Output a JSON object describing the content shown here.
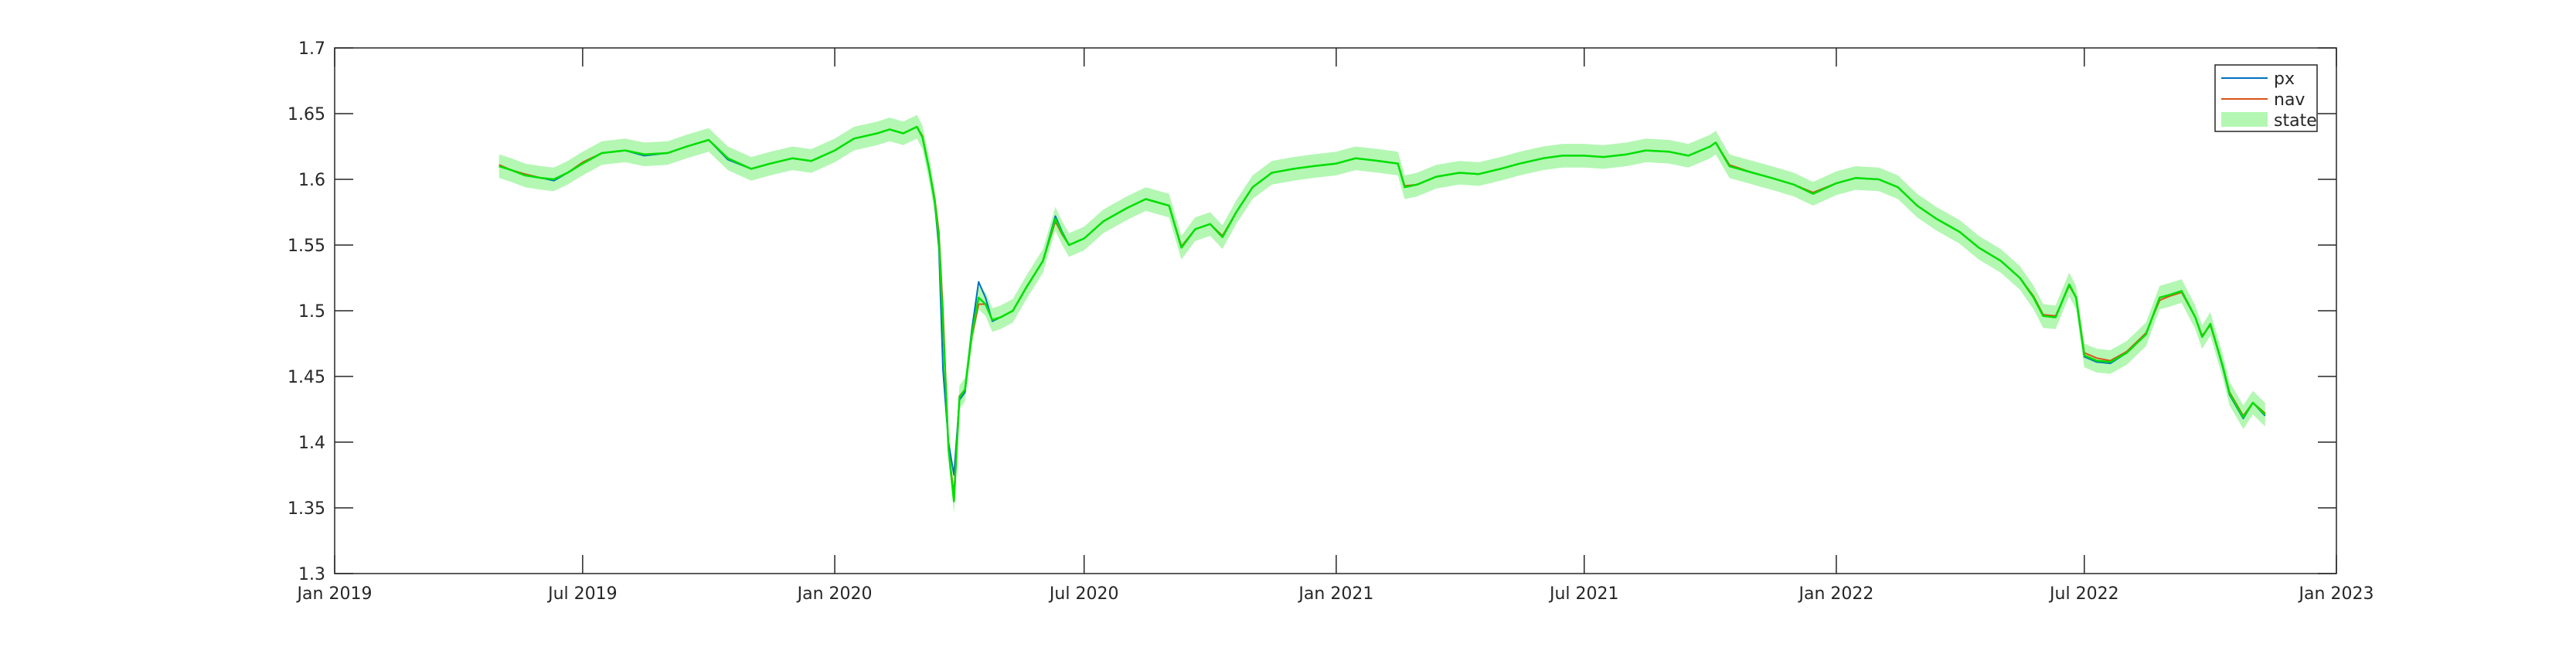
{
  "chart_data": {
    "type": "line",
    "title": "",
    "xlabel": "",
    "ylabel": "",
    "xlim": [
      "2019-01-01",
      "2023-01-01"
    ],
    "ylim": [
      1.3,
      1.7
    ],
    "grid": false,
    "legend_position": "top-right",
    "xticks": [
      "Jan 2019",
      "Jul 2019",
      "Jan 2020",
      "Jul 2020",
      "Jan 2021",
      "Jul 2021",
      "Jan 2022",
      "Jul 2022",
      "Jan 2023"
    ],
    "yticks": [
      "1.3",
      "1.35",
      "1.4",
      "1.45",
      "1.5",
      "1.55",
      "1.6",
      "1.65",
      "1.7"
    ],
    "x": [
      "2019-05-01",
      "2019-05-10",
      "2019-05-20",
      "2019-06-01",
      "2019-06-10",
      "2019-06-20",
      "2019-07-01",
      "2019-07-15",
      "2019-08-01",
      "2019-08-15",
      "2019-09-01",
      "2019-09-15",
      "2019-10-01",
      "2019-10-15",
      "2019-11-01",
      "2019-11-15",
      "2019-12-01",
      "2019-12-15",
      "2020-01-01",
      "2020-01-15",
      "2020-02-01",
      "2020-02-10",
      "2020-02-20",
      "2020-03-01",
      "2020-03-05",
      "2020-03-10",
      "2020-03-14",
      "2020-03-17",
      "2020-03-20",
      "2020-03-24",
      "2020-03-28",
      "2020-04-01",
      "2020-04-05",
      "2020-04-10",
      "2020-04-15",
      "2020-04-20",
      "2020-04-25",
      "2020-05-01",
      "2020-05-10",
      "2020-05-20",
      "2020-06-01",
      "2020-06-10",
      "2020-06-15",
      "2020-06-20",
      "2020-07-01",
      "2020-07-15",
      "2020-08-01",
      "2020-08-15",
      "2020-09-01",
      "2020-09-10",
      "2020-09-20",
      "2020-10-01",
      "2020-10-10",
      "2020-10-20",
      "2020-11-01",
      "2020-11-15",
      "2020-12-01",
      "2020-12-15",
      "2021-01-01",
      "2021-01-15",
      "2021-02-01",
      "2021-02-15",
      "2021-02-20",
      "2021-03-01",
      "2021-03-15",
      "2021-04-01",
      "2021-04-15",
      "2021-05-01",
      "2021-05-15",
      "2021-06-01",
      "2021-06-15",
      "2021-07-01",
      "2021-07-15",
      "2021-08-01",
      "2021-08-15",
      "2021-09-01",
      "2021-09-15",
      "2021-10-01",
      "2021-10-05",
      "2021-10-15",
      "2021-11-01",
      "2021-11-15",
      "2021-12-01",
      "2021-12-15",
      "2022-01-01",
      "2022-01-15",
      "2022-02-01",
      "2022-02-15",
      "2022-03-01",
      "2022-03-15",
      "2022-04-01",
      "2022-04-15",
      "2022-05-01",
      "2022-05-15",
      "2022-05-25",
      "2022-06-01",
      "2022-06-10",
      "2022-06-20",
      "2022-06-25",
      "2022-07-01",
      "2022-07-10",
      "2022-07-20",
      "2022-08-01",
      "2022-08-15",
      "2022-08-25",
      "2022-09-01",
      "2022-09-10",
      "2022-09-20",
      "2022-09-25",
      "2022-10-01",
      "2022-10-10",
      "2022-10-15",
      "2022-10-25",
      "2022-11-01",
      "2022-11-10"
    ],
    "series": [
      {
        "name": "px",
        "color": "#0072bd",
        "values": [
          1.61,
          1.607,
          1.603,
          1.601,
          1.599,
          1.605,
          1.612,
          1.62,
          1.622,
          1.618,
          1.62,
          1.625,
          1.63,
          1.615,
          1.608,
          1.612,
          1.616,
          1.614,
          1.622,
          1.631,
          1.635,
          1.638,
          1.635,
          1.64,
          1.632,
          1.607,
          1.582,
          1.548,
          1.455,
          1.4,
          1.375,
          1.432,
          1.438,
          1.485,
          1.522,
          1.51,
          1.492,
          1.495,
          1.5,
          1.518,
          1.538,
          1.572,
          1.56,
          1.55,
          1.555,
          1.568,
          1.578,
          1.585,
          1.58,
          1.548,
          1.562,
          1.566,
          1.556,
          1.575,
          1.594,
          1.605,
          1.608,
          1.61,
          1.612,
          1.616,
          1.614,
          1.612,
          1.594,
          1.596,
          1.602,
          1.605,
          1.604,
          1.608,
          1.612,
          1.616,
          1.618,
          1.618,
          1.617,
          1.619,
          1.622,
          1.621,
          1.618,
          1.625,
          1.628,
          1.61,
          1.605,
          1.601,
          1.596,
          1.589,
          1.597,
          1.601,
          1.6,
          1.594,
          1.58,
          1.57,
          1.56,
          1.548,
          1.538,
          1.525,
          1.51,
          1.496,
          1.495,
          1.52,
          1.51,
          1.465,
          1.461,
          1.46,
          1.468,
          1.482,
          1.51,
          1.512,
          1.515,
          1.495,
          1.48,
          1.49,
          1.457,
          1.436,
          1.418,
          1.43,
          1.42
        ]
      },
      {
        "name": "nav",
        "color": "#d95319",
        "values": [
          1.611,
          1.607,
          1.604,
          1.601,
          1.6,
          1.605,
          1.613,
          1.62,
          1.622,
          1.619,
          1.62,
          1.625,
          1.63,
          1.616,
          1.608,
          1.612,
          1.616,
          1.614,
          1.622,
          1.631,
          1.635,
          1.638,
          1.635,
          1.64,
          1.633,
          1.607,
          1.585,
          1.56,
          1.5,
          1.395,
          1.36,
          1.435,
          1.44,
          1.48,
          1.505,
          1.505,
          1.493,
          1.495,
          1.5,
          1.518,
          1.538,
          1.568,
          1.558,
          1.55,
          1.555,
          1.568,
          1.578,
          1.585,
          1.58,
          1.549,
          1.562,
          1.566,
          1.557,
          1.575,
          1.594,
          1.605,
          1.608,
          1.61,
          1.612,
          1.616,
          1.614,
          1.612,
          1.595,
          1.596,
          1.602,
          1.605,
          1.604,
          1.608,
          1.612,
          1.616,
          1.618,
          1.618,
          1.617,
          1.619,
          1.622,
          1.621,
          1.618,
          1.625,
          1.628,
          1.611,
          1.605,
          1.601,
          1.596,
          1.59,
          1.597,
          1.601,
          1.6,
          1.594,
          1.58,
          1.57,
          1.56,
          1.548,
          1.538,
          1.525,
          1.511,
          1.497,
          1.496,
          1.519,
          1.51,
          1.468,
          1.464,
          1.462,
          1.469,
          1.483,
          1.508,
          1.511,
          1.514,
          1.495,
          1.481,
          1.489,
          1.458,
          1.438,
          1.42,
          1.43,
          1.422
        ]
      },
      {
        "name": "state",
        "color": "#00e000",
        "band_color": "#b3f7b3",
        "band_halfwidth": 0.009,
        "values": [
          1.61,
          1.607,
          1.603,
          1.601,
          1.6,
          1.605,
          1.612,
          1.62,
          1.622,
          1.619,
          1.62,
          1.625,
          1.63,
          1.616,
          1.608,
          1.612,
          1.616,
          1.614,
          1.622,
          1.631,
          1.635,
          1.638,
          1.635,
          1.64,
          1.632,
          1.607,
          1.583,
          1.555,
          1.49,
          1.395,
          1.355,
          1.434,
          1.44,
          1.482,
          1.51,
          1.505,
          1.493,
          1.495,
          1.5,
          1.518,
          1.538,
          1.57,
          1.559,
          1.55,
          1.555,
          1.568,
          1.578,
          1.585,
          1.58,
          1.548,
          1.562,
          1.566,
          1.556,
          1.575,
          1.594,
          1.605,
          1.608,
          1.61,
          1.612,
          1.616,
          1.614,
          1.612,
          1.594,
          1.596,
          1.602,
          1.605,
          1.604,
          1.608,
          1.612,
          1.616,
          1.618,
          1.618,
          1.617,
          1.619,
          1.622,
          1.621,
          1.618,
          1.625,
          1.628,
          1.61,
          1.605,
          1.601,
          1.596,
          1.589,
          1.597,
          1.601,
          1.6,
          1.594,
          1.58,
          1.57,
          1.56,
          1.548,
          1.538,
          1.525,
          1.51,
          1.496,
          1.495,
          1.52,
          1.51,
          1.466,
          1.462,
          1.461,
          1.468,
          1.482,
          1.51,
          1.512,
          1.515,
          1.495,
          1.48,
          1.49,
          1.458,
          1.437,
          1.419,
          1.43,
          1.421
        ]
      }
    ]
  }
}
